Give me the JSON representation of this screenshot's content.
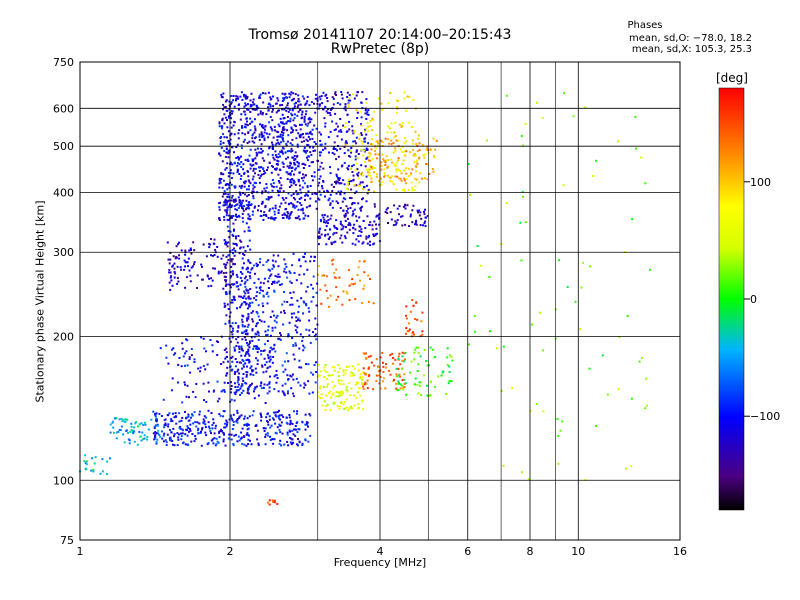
{
  "header": {
    "title_line1": "Tromsø 20141107 20:14:00–20:15:43",
    "title_line2": "RwPretec (8p)",
    "phases_title": "Phases",
    "phases_o": "mean, sd,O: −78.0, 18.2",
    "phases_x": "mean, sd,X: 105.3, 25.3"
  },
  "chart_data": {
    "type": "scatter",
    "title": "Tromsø 20141107 20:14:00–20:15:43",
    "subtitle": "RwPretec (8p)",
    "xlabel": "Frequency [MHz]",
    "ylabel": "Stationary phase Virtual Height [km]",
    "xscale": "log",
    "yscale": "log",
    "xlim": [
      1,
      16
    ],
    "ylim": [
      75,
      750
    ],
    "xticks": [
      "1",
      "2",
      "4",
      "6",
      "8",
      "10",
      "16"
    ],
    "yticks": [
      "75",
      "100",
      "200",
      "300",
      "400",
      "500",
      "600",
      "750"
    ],
    "grid": true,
    "colorbar": {
      "label": "[deg]",
      "ticks": [
        "100",
        "0",
        "−100"
      ],
      "tick_values": [
        100,
        0,
        -100
      ],
      "range": [
        -180,
        180
      ]
    },
    "clusters": [
      {
        "x": [
          1.9,
          2.9
        ],
        "y": [
          350,
          650
        ],
        "n": 900,
        "phase": -110
      },
      {
        "x": [
          2.9,
          3.8
        ],
        "y": [
          360,
          650
        ],
        "n": 320,
        "phase": -115
      },
      {
        "x": [
          3.4,
          4.8
        ],
        "y": [
          400,
          650
        ],
        "n": 160,
        "phase": 80
      },
      {
        "x": [
          3.8,
          5.2
        ],
        "y": [
          420,
          520
        ],
        "n": 120,
        "phase": 110
      },
      {
        "x": [
          3.9,
          5.0
        ],
        "y": [
          340,
          380
        ],
        "n": 60,
        "phase": -130
      },
      {
        "x": [
          3.0,
          4.0
        ],
        "y": [
          310,
          360
        ],
        "n": 120,
        "phase": -120
      },
      {
        "x": [
          1.5,
          2.05
        ],
        "y": [
          250,
          320
        ],
        "n": 130,
        "phase": -125
      },
      {
        "x": [
          1.95,
          2.2
        ],
        "y": [
          150,
          400
        ],
        "n": 280,
        "phase": -110
      },
      {
        "x": [
          2.1,
          3.0
        ],
        "y": [
          150,
          300
        ],
        "n": 380,
        "phase": -100
      },
      {
        "x": [
          1.45,
          2.4
        ],
        "y": [
          145,
          200
        ],
        "n": 120,
        "phase": -105
      },
      {
        "x": [
          3.0,
          3.7
        ],
        "y": [
          140,
          175
        ],
        "n": 130,
        "phase": 60
      },
      {
        "x": [
          3.7,
          4.5
        ],
        "y": [
          155,
          185
        ],
        "n": 80,
        "phase": 140
      },
      {
        "x": [
          4.3,
          5.6
        ],
        "y": [
          150,
          190
        ],
        "n": 70,
        "phase": 10
      },
      {
        "x": [
          1.4,
          2.9
        ],
        "y": [
          118,
          140
        ],
        "n": 380,
        "phase": -100
      },
      {
        "x": [
          1.15,
          1.45
        ],
        "y": [
          118,
          135
        ],
        "n": 70,
        "phase": -45
      },
      {
        "x": [
          1.0,
          1.15
        ],
        "y": [
          103,
          113
        ],
        "n": 20,
        "phase": -35
      },
      {
        "x": [
          3.0,
          4.0
        ],
        "y": [
          230,
          290
        ],
        "n": 50,
        "phase": 130
      },
      {
        "x": [
          4.5,
          4.9
        ],
        "y": [
          200,
          240
        ],
        "n": 25,
        "phase": 150
      },
      {
        "x": [
          2.35,
          2.5
        ],
        "y": [
          89,
          91
        ],
        "n": 8,
        "phase": 150
      },
      {
        "x": [
          6.0,
          14.0
        ],
        "y": [
          100,
          650
        ],
        "n": 80,
        "phase": 20
      }
    ]
  }
}
